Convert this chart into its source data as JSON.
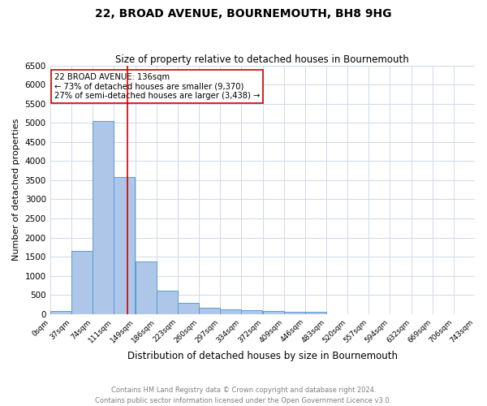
{
  "title": "22, BROAD AVENUE, BOURNEMOUTH, BH8 9HG",
  "subtitle": "Size of property relative to detached houses in Bournemouth",
  "xlabel": "Distribution of detached houses by size in Bournemouth",
  "ylabel": "Number of detached properties",
  "bin_labels": [
    "0sqm",
    "37sqm",
    "74sqm",
    "111sqm",
    "149sqm",
    "186sqm",
    "223sqm",
    "260sqm",
    "297sqm",
    "334sqm",
    "372sqm",
    "409sqm",
    "446sqm",
    "483sqm",
    "520sqm",
    "557sqm",
    "594sqm",
    "632sqm",
    "669sqm",
    "706sqm",
    "743sqm"
  ],
  "bin_edges": [
    0,
    37,
    74,
    111,
    149,
    186,
    223,
    260,
    297,
    334,
    372,
    409,
    446,
    483,
    520,
    557,
    594,
    632,
    669,
    706,
    743
  ],
  "bar_heights": [
    75,
    1650,
    5050,
    3580,
    1380,
    600,
    300,
    160,
    120,
    100,
    75,
    50,
    50,
    0,
    0,
    0,
    0,
    0,
    0,
    0
  ],
  "bar_color": "#aec6e8",
  "bar_edgecolor": "#5b9bd5",
  "property_size": 136,
  "vline_color": "#cc0000",
  "annotation_text": "22 BROAD AVENUE: 136sqm\n← 73% of detached houses are smaller (9,370)\n27% of semi-detached houses are larger (3,438) →",
  "annotation_box_edgecolor": "#cc0000",
  "annotation_box_facecolor": "#ffffff",
  "ylim": [
    0,
    6500
  ],
  "yticks": [
    0,
    500,
    1000,
    1500,
    2000,
    2500,
    3000,
    3500,
    4000,
    4500,
    5000,
    5500,
    6000,
    6500
  ],
  "footnote1": "Contains HM Land Registry data © Crown copyright and database right 2024.",
  "footnote2": "Contains public sector information licensed under the Open Government Licence v3.0.",
  "background_color": "#ffffff",
  "grid_color": "#d0d8e8"
}
